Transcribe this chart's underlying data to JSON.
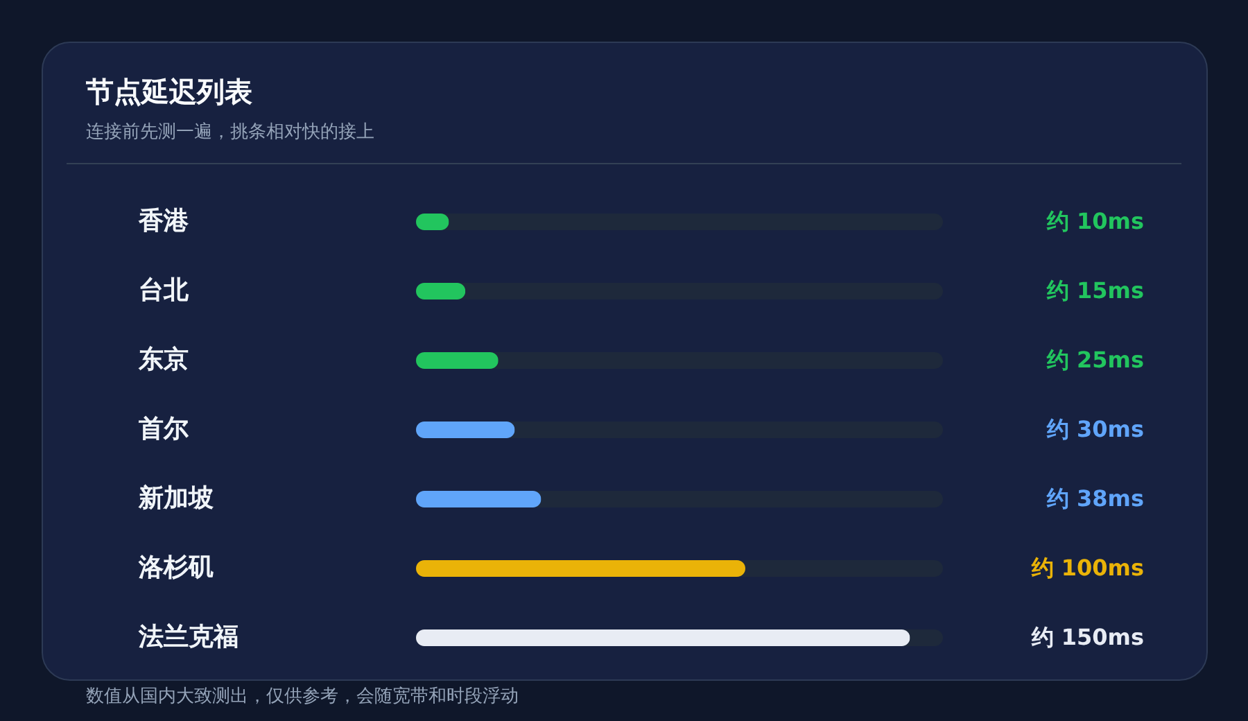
{
  "chart_data": {
    "type": "bar",
    "orientation": "horizontal",
    "title": "节点延迟列表",
    "subtitle": "连接前先测一遍，挑条相对快的接上",
    "categories": [
      "香港",
      "台北",
      "东京",
      "首尔",
      "新加坡",
      "洛杉矶",
      "法兰克福"
    ],
    "values": [
      10,
      15,
      25,
      30,
      38,
      100,
      150
    ],
    "colors": [
      "#22c55e",
      "#22c55e",
      "#22c55e",
      "#60a5fa",
      "#60a5fa",
      "#eab308",
      "#e8ecf4"
    ],
    "value_labels": [
      "约 10ms",
      "约 15ms",
      "约 25ms",
      "约 30ms",
      "约 38ms",
      "约 100ms",
      "约 150ms"
    ],
    "xlim": [
      0,
      160
    ],
    "tick_labels": "y",
    "annotations": [
      "数值从国内大致测出，仅供参考，会随宽带和时段浮动"
    ]
  }
}
